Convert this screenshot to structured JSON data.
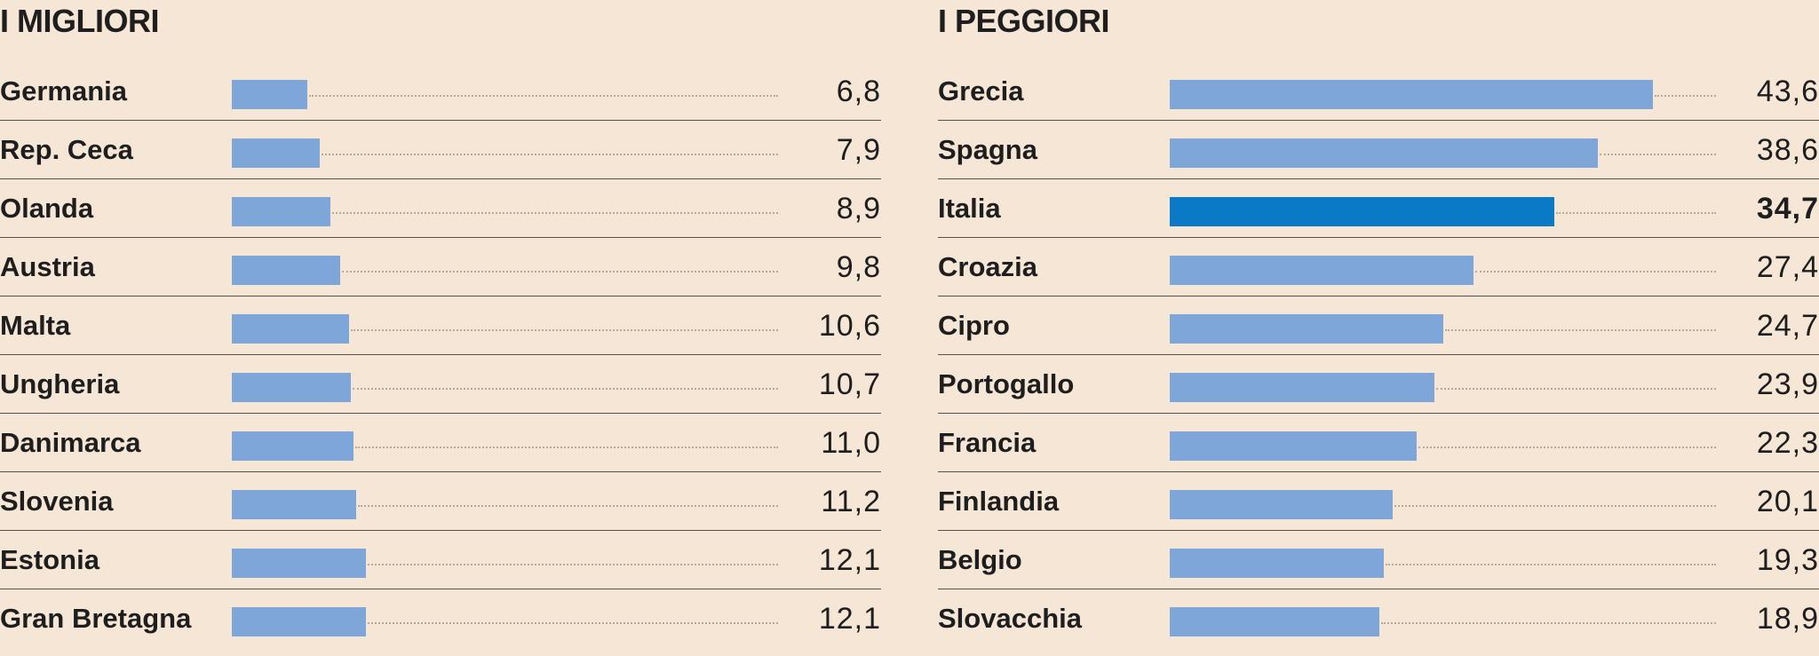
{
  "chart_data": [
    {
      "type": "bar",
      "orientation": "horizontal",
      "title": "I MIGLIORI",
      "categories": [
        "Germania",
        "Rep. Ceca",
        "Olanda",
        "Austria",
        "Malta",
        "Ungheria",
        "Danimarca",
        "Slovenia",
        "Estonia",
        "Gran Bretagna"
      ],
      "values": [
        6.8,
        7.9,
        8.9,
        9.8,
        10.6,
        10.7,
        11.0,
        11.2,
        12.1,
        12.1
      ],
      "value_labels": [
        "6,8",
        "7,9",
        "8,9",
        "9,8",
        "10,6",
        "10,7",
        "11,0",
        "11,2",
        "12,1",
        "12,1"
      ],
      "xlim": [
        0,
        50
      ],
      "highlight": "",
      "grid": false,
      "colors": {
        "bar": "#7fa6d8",
        "highlight": "#0a7ac6"
      }
    },
    {
      "type": "bar",
      "orientation": "horizontal",
      "title": "I PEGGIORI",
      "categories": [
        "Grecia",
        "Spagna",
        "Italia",
        "Croazia",
        "Cipro",
        "Portogallo",
        "Francia",
        "Finlandia",
        "Belgio",
        "Slovacchia"
      ],
      "values": [
        43.6,
        38.6,
        34.7,
        27.4,
        24.7,
        23.9,
        22.3,
        20.1,
        19.3,
        18.9
      ],
      "value_labels": [
        "43,6",
        "38,6",
        "34,7",
        "27,4",
        "24,7",
        "23,9",
        "22,3",
        "20,1",
        "19,3",
        "18,9"
      ],
      "xlim": [
        0,
        50
      ],
      "highlight": "Italia",
      "grid": false,
      "colors": {
        "bar": "#7fa6d8",
        "highlight": "#0a7ac6"
      }
    }
  ]
}
